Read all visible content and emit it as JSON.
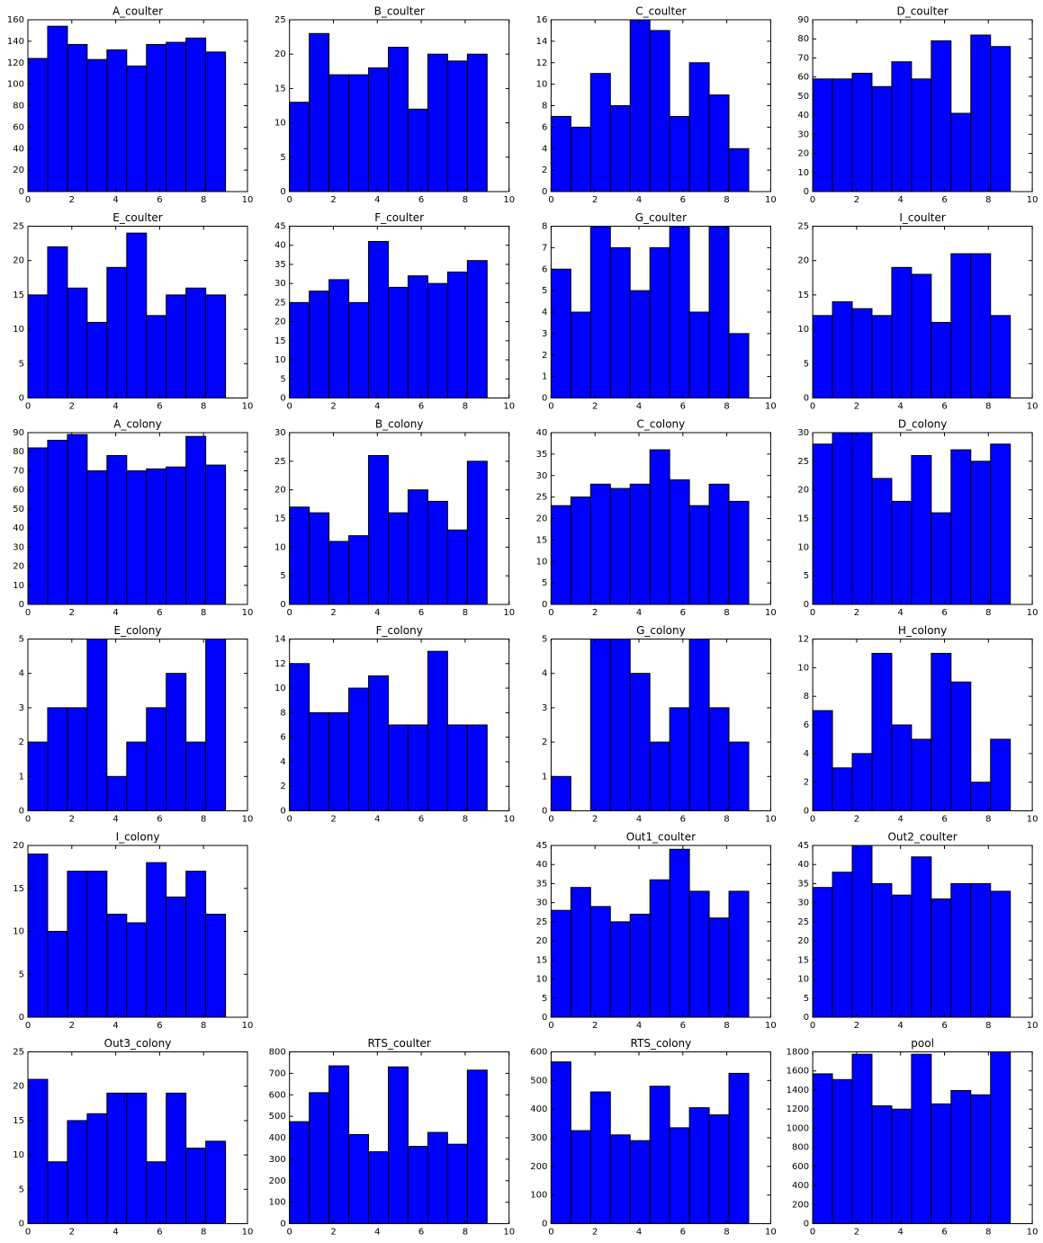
{
  "chart_data": [
    {
      "type": "histogram",
      "title": "A_coulter",
      "bins": [
        0,
        0.9,
        1.8,
        2.7,
        3.6,
        4.5,
        5.4,
        6.3,
        7.2,
        8.1,
        9
      ],
      "values": [
        124,
        154,
        137,
        123,
        132,
        117,
        137,
        139,
        143,
        130
      ],
      "color": "#0000ff",
      "xlim": [
        0,
        10
      ],
      "xticks": [
        0,
        2,
        4,
        6,
        8,
        10
      ],
      "ylim": [
        0,
        160
      ],
      "yticks": [
        0,
        20,
        40,
        60,
        80,
        100,
        120,
        140,
        160
      ]
    },
    {
      "type": "histogram",
      "title": "B_coulter",
      "bins": [
        0,
        0.9,
        1.8,
        2.7,
        3.6,
        4.5,
        5.4,
        6.3,
        7.2,
        8.1,
        9
      ],
      "values": [
        13,
        23,
        17,
        17,
        18,
        21,
        12,
        20,
        19,
        20
      ],
      "color": "#0000ff",
      "xlim": [
        0,
        10
      ],
      "xticks": [
        0,
        2,
        4,
        6,
        8,
        10
      ],
      "ylim": [
        0,
        25
      ],
      "yticks": [
        0,
        5,
        10,
        15,
        20,
        25
      ]
    },
    {
      "type": "histogram",
      "title": "C_coulter",
      "bins": [
        0,
        0.9,
        1.8,
        2.7,
        3.6,
        4.5,
        5.4,
        6.3,
        7.2,
        8.1,
        9
      ],
      "values": [
        7,
        6,
        11,
        8,
        16,
        15,
        7,
        12,
        9,
        4
      ],
      "color": "#0000ff",
      "xlim": [
        0,
        10
      ],
      "xticks": [
        0,
        2,
        4,
        6,
        8,
        10
      ],
      "ylim": [
        0,
        16
      ],
      "yticks": [
        0,
        2,
        4,
        6,
        8,
        10,
        12,
        14,
        16
      ]
    },
    {
      "type": "histogram",
      "title": "D_coulter",
      "bins": [
        0,
        0.9,
        1.8,
        2.7,
        3.6,
        4.5,
        5.4,
        6.3,
        7.2,
        8.1,
        9
      ],
      "values": [
        59,
        59,
        62,
        55,
        68,
        59,
        79,
        41,
        82,
        76
      ],
      "color": "#0000ff",
      "xlim": [
        0,
        10
      ],
      "xticks": [
        0,
        2,
        4,
        6,
        8,
        10
      ],
      "ylim": [
        0,
        90
      ],
      "yticks": [
        0,
        10,
        20,
        30,
        40,
        50,
        60,
        70,
        80,
        90
      ]
    },
    {
      "type": "histogram",
      "title": "E_coulter",
      "bins": [
        0,
        0.9,
        1.8,
        2.7,
        3.6,
        4.5,
        5.4,
        6.3,
        7.2,
        8.1,
        9
      ],
      "values": [
        15,
        22,
        16,
        11,
        19,
        24,
        12,
        15,
        16,
        15
      ],
      "color": "#0000ff",
      "xlim": [
        0,
        10
      ],
      "xticks": [
        0,
        2,
        4,
        6,
        8,
        10
      ],
      "ylim": [
        0,
        25
      ],
      "yticks": [
        0,
        5,
        10,
        15,
        20,
        25
      ]
    },
    {
      "type": "histogram",
      "title": "F_coulter",
      "bins": [
        0,
        0.9,
        1.8,
        2.7,
        3.6,
        4.5,
        5.4,
        6.3,
        7.2,
        8.1,
        9
      ],
      "values": [
        25,
        28,
        31,
        25,
        41,
        29,
        32,
        30,
        33,
        36
      ],
      "color": "#0000ff",
      "xlim": [
        0,
        10
      ],
      "xticks": [
        0,
        2,
        4,
        6,
        8,
        10
      ],
      "ylim": [
        0,
        45
      ],
      "yticks": [
        0,
        5,
        10,
        15,
        20,
        25,
        30,
        35,
        40,
        45
      ]
    },
    {
      "type": "histogram",
      "title": "G_coulter",
      "bins": [
        0,
        0.9,
        1.8,
        2.7,
        3.6,
        4.5,
        5.4,
        6.3,
        7.2,
        8.1,
        9
      ],
      "values": [
        6,
        4,
        8,
        7,
        5,
        7,
        8,
        4,
        8,
        3
      ],
      "color": "#0000ff",
      "xlim": [
        0,
        10
      ],
      "xticks": [
        0,
        2,
        4,
        6,
        8,
        10
      ],
      "ylim": [
        0,
        8
      ],
      "yticks": [
        0,
        1,
        2,
        3,
        4,
        5,
        6,
        7,
        8
      ]
    },
    {
      "type": "histogram",
      "title": "I_coulter",
      "bins": [
        0,
        0.9,
        1.8,
        2.7,
        3.6,
        4.5,
        5.4,
        6.3,
        7.2,
        8.1,
        9
      ],
      "values": [
        12,
        14,
        13,
        12,
        19,
        18,
        11,
        21,
        21,
        12
      ],
      "color": "#0000ff",
      "xlim": [
        0,
        10
      ],
      "xticks": [
        0,
        2,
        4,
        6,
        8,
        10
      ],
      "ylim": [
        0,
        25
      ],
      "yticks": [
        0,
        5,
        10,
        15,
        20,
        25
      ]
    },
    {
      "type": "histogram",
      "title": "A_colony",
      "bins": [
        0,
        0.9,
        1.8,
        2.7,
        3.6,
        4.5,
        5.4,
        6.3,
        7.2,
        8.1,
        9
      ],
      "values": [
        82,
        86,
        89,
        70,
        78,
        70,
        71,
        72,
        88,
        73
      ],
      "color": "#0000ff",
      "xlim": [
        0,
        10
      ],
      "xticks": [
        0,
        2,
        4,
        6,
        8,
        10
      ],
      "ylim": [
        0,
        90
      ],
      "yticks": [
        0,
        10,
        20,
        30,
        40,
        50,
        60,
        70,
        80,
        90
      ]
    },
    {
      "type": "histogram",
      "title": "B_colony",
      "bins": [
        0,
        0.9,
        1.8,
        2.7,
        3.6,
        4.5,
        5.4,
        6.3,
        7.2,
        8.1,
        9
      ],
      "values": [
        17,
        16,
        11,
        12,
        26,
        16,
        20,
        18,
        13,
        25
      ],
      "color": "#0000ff",
      "xlim": [
        0,
        10
      ],
      "xticks": [
        0,
        2,
        4,
        6,
        8,
        10
      ],
      "ylim": [
        0,
        30
      ],
      "yticks": [
        0,
        5,
        10,
        15,
        20,
        25,
        30
      ]
    },
    {
      "type": "histogram",
      "title": "C_colony",
      "bins": [
        0,
        0.9,
        1.8,
        2.7,
        3.6,
        4.5,
        5.4,
        6.3,
        7.2,
        8.1,
        9
      ],
      "values": [
        23,
        25,
        28,
        27,
        28,
        36,
        29,
        23,
        28,
        24
      ],
      "color": "#0000ff",
      "xlim": [
        0,
        10
      ],
      "xticks": [
        0,
        2,
        4,
        6,
        8,
        10
      ],
      "ylim": [
        0,
        40
      ],
      "yticks": [
        0,
        5,
        10,
        15,
        20,
        25,
        30,
        35,
        40
      ]
    },
    {
      "type": "histogram",
      "title": "D_colony",
      "bins": [
        0,
        0.9,
        1.8,
        2.7,
        3.6,
        4.5,
        5.4,
        6.3,
        7.2,
        8.1,
        9
      ],
      "values": [
        28,
        30,
        30,
        22,
        18,
        26,
        16,
        27,
        25,
        28
      ],
      "color": "#0000ff",
      "xlim": [
        0,
        10
      ],
      "xticks": [
        0,
        2,
        4,
        6,
        8,
        10
      ],
      "ylim": [
        0,
        30
      ],
      "yticks": [
        0,
        5,
        10,
        15,
        20,
        25,
        30
      ]
    },
    {
      "type": "histogram",
      "title": "E_colony",
      "bins": [
        0,
        0.9,
        1.8,
        2.7,
        3.6,
        4.5,
        5.4,
        6.3,
        7.2,
        8.1,
        9
      ],
      "values": [
        2,
        3,
        3,
        5,
        1,
        2,
        3,
        4,
        2,
        5
      ],
      "color": "#0000ff",
      "xlim": [
        0,
        10
      ],
      "xticks": [
        0,
        2,
        4,
        6,
        8,
        10
      ],
      "ylim": [
        0,
        5
      ],
      "yticks": [
        0,
        1,
        2,
        3,
        4,
        5
      ]
    },
    {
      "type": "histogram",
      "title": "F_colony",
      "bins": [
        0,
        0.9,
        1.8,
        2.7,
        3.6,
        4.5,
        5.4,
        6.3,
        7.2,
        8.1,
        9
      ],
      "values": [
        12,
        8,
        8,
        10,
        11,
        7,
        7,
        13,
        7,
        7
      ],
      "color": "#0000ff",
      "xlim": [
        0,
        10
      ],
      "xticks": [
        0,
        2,
        4,
        6,
        8,
        10
      ],
      "ylim": [
        0,
        14
      ],
      "yticks": [
        0,
        2,
        4,
        6,
        8,
        10,
        12,
        14
      ]
    },
    {
      "type": "histogram",
      "title": "G_colony",
      "bins": [
        0,
        0.9,
        1.8,
        2.7,
        3.6,
        4.5,
        5.4,
        6.3,
        7.2,
        8.1,
        9
      ],
      "values": [
        1,
        0,
        5,
        5,
        4,
        2,
        3,
        5,
        3,
        2
      ],
      "color": "#0000ff",
      "xlim": [
        0,
        10
      ],
      "xticks": [
        0,
        2,
        4,
        6,
        8,
        10
      ],
      "ylim": [
        0,
        5
      ],
      "yticks": [
        0,
        1,
        2,
        3,
        4,
        5
      ]
    },
    {
      "type": "histogram",
      "title": "H_colony",
      "bins": [
        0,
        0.9,
        1.8,
        2.7,
        3.6,
        4.5,
        5.4,
        6.3,
        7.2,
        8.1,
        9
      ],
      "values": [
        7,
        3,
        4,
        11,
        6,
        5,
        11,
        9,
        2,
        5
      ],
      "color": "#0000ff",
      "xlim": [
        0,
        10
      ],
      "xticks": [
        0,
        2,
        4,
        6,
        8,
        10
      ],
      "ylim": [
        0,
        12
      ],
      "yticks": [
        0,
        2,
        4,
        6,
        8,
        10,
        12
      ]
    },
    {
      "type": "histogram",
      "title": "I_colony",
      "bins": [
        0,
        0.9,
        1.8,
        2.7,
        3.6,
        4.5,
        5.4,
        6.3,
        7.2,
        8.1,
        9
      ],
      "values": [
        19,
        10,
        17,
        17,
        12,
        11,
        18,
        14,
        17,
        12
      ],
      "color": "#0000ff",
      "xlim": [
        0,
        10
      ],
      "xticks": [
        0,
        2,
        4,
        6,
        8,
        10
      ],
      "ylim": [
        0,
        20
      ],
      "yticks": [
        0,
        5,
        10,
        15,
        20
      ]
    },
    {
      "type": "histogram",
      "title": "Out1_coulter",
      "bins": [
        0,
        0.9,
        1.8,
        2.7,
        3.6,
        4.5,
        5.4,
        6.3,
        7.2,
        8.1,
        9
      ],
      "values": [
        28,
        34,
        29,
        25,
        27,
        36,
        44,
        33,
        26,
        33
      ],
      "color": "#0000ff",
      "xlim": [
        0,
        10
      ],
      "xticks": [
        0,
        2,
        4,
        6,
        8,
        10
      ],
      "ylim": [
        0,
        45
      ],
      "yticks": [
        0,
        5,
        10,
        15,
        20,
        25,
        30,
        35,
        40,
        45
      ]
    },
    {
      "type": "histogram",
      "title": "Out2_coulter",
      "bins": [
        0,
        0.9,
        1.8,
        2.7,
        3.6,
        4.5,
        5.4,
        6.3,
        7.2,
        8.1,
        9
      ],
      "values": [
        34,
        38,
        45,
        35,
        32,
        42,
        31,
        35,
        35,
        33
      ],
      "color": "#0000ff",
      "xlim": [
        0,
        10
      ],
      "xticks": [
        0,
        2,
        4,
        6,
        8,
        10
      ],
      "ylim": [
        0,
        45
      ],
      "yticks": [
        0,
        5,
        10,
        15,
        20,
        25,
        30,
        35,
        40,
        45
      ]
    },
    {
      "type": "histogram",
      "title": "Out3_colony",
      "bins": [
        0,
        0.9,
        1.8,
        2.7,
        3.6,
        4.5,
        5.4,
        6.3,
        7.2,
        8.1,
        9
      ],
      "values": [
        21,
        9,
        15,
        16,
        19,
        19,
        9,
        19,
        11,
        12
      ],
      "color": "#0000ff",
      "xlim": [
        0,
        10
      ],
      "xticks": [
        0,
        2,
        4,
        6,
        8,
        10
      ],
      "ylim": [
        0,
        25
      ],
      "yticks": [
        0,
        5,
        10,
        15,
        20,
        25
      ]
    },
    {
      "type": "histogram",
      "title": "RTS_coulter",
      "bins": [
        0,
        0.9,
        1.8,
        2.7,
        3.6,
        4.5,
        5.4,
        6.3,
        7.2,
        8.1,
        9
      ],
      "values": [
        475,
        610,
        735,
        415,
        335,
        730,
        360,
        425,
        370,
        715
      ],
      "color": "#0000ff",
      "xlim": [
        0,
        10
      ],
      "xticks": [
        0,
        2,
        4,
        6,
        8,
        10
      ],
      "ylim": [
        0,
        800
      ],
      "yticks": [
        0,
        100,
        200,
        300,
        400,
        500,
        600,
        700,
        800
      ]
    },
    {
      "type": "histogram",
      "title": "RTS_colony",
      "bins": [
        0,
        0.9,
        1.8,
        2.7,
        3.6,
        4.5,
        5.4,
        6.3,
        7.2,
        8.1,
        9
      ],
      "values": [
        565,
        325,
        460,
        310,
        290,
        480,
        335,
        405,
        380,
        525
      ],
      "color": "#0000ff",
      "xlim": [
        0,
        10
      ],
      "xticks": [
        0,
        2,
        4,
        6,
        8,
        10
      ],
      "ylim": [
        0,
        600
      ],
      "yticks": [
        0,
        100,
        200,
        300,
        400,
        500,
        600
      ]
    },
    {
      "type": "histogram",
      "title": "pool",
      "bins": [
        0,
        0.9,
        1.8,
        2.7,
        3.6,
        4.5,
        5.4,
        6.3,
        7.2,
        8.1,
        9
      ],
      "values": [
        1570,
        1510,
        1775,
        1235,
        1200,
        1775,
        1255,
        1395,
        1350,
        1800
      ],
      "color": "#0000ff",
      "xlim": [
        0,
        10
      ],
      "xticks": [
        0,
        2,
        4,
        6,
        8,
        10
      ],
      "ylim": [
        0,
        1800
      ],
      "yticks": [
        0,
        200,
        400,
        600,
        800,
        1000,
        1200,
        1400,
        1600,
        1800
      ]
    }
  ]
}
